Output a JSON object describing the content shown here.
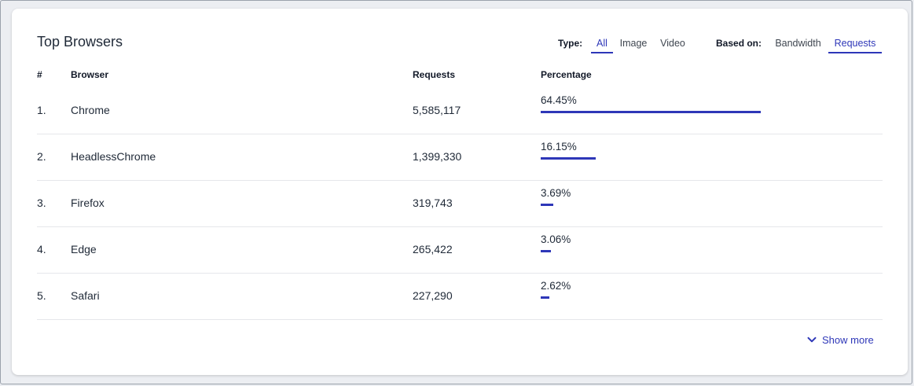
{
  "card": {
    "title": "Top Browsers"
  },
  "filters": {
    "type_label": "Type:",
    "type_options": [
      "All",
      "Image",
      "Video"
    ],
    "type_selected": "All",
    "based_label": "Based on:",
    "based_options": [
      "Bandwidth",
      "Requests"
    ],
    "based_selected": "Requests"
  },
  "table": {
    "headers": {
      "rank": "#",
      "browser": "Browser",
      "requests": "Requests",
      "percentage": "Percentage"
    },
    "rows": [
      {
        "rank": "1.",
        "browser": "Chrome",
        "requests": "5,585,117",
        "percentage": "64.45%",
        "fraction": 0.6445
      },
      {
        "rank": "2.",
        "browser": "HeadlessChrome",
        "requests": "1,399,330",
        "percentage": "16.15%",
        "fraction": 0.1615
      },
      {
        "rank": "3.",
        "browser": "Firefox",
        "requests": "319,743",
        "percentage": "3.69%",
        "fraction": 0.0369
      },
      {
        "rank": "4.",
        "browser": "Edge",
        "requests": "265,422",
        "percentage": "3.06%",
        "fraction": 0.0306
      },
      {
        "rank": "5.",
        "browser": "Safari",
        "requests": "227,290",
        "percentage": "2.62%",
        "fraction": 0.0262
      }
    ]
  },
  "footer": {
    "show_more_label": "Show more",
    "show_more_icon": "chevron-down-icon"
  },
  "colors": {
    "accent": "#2e37b8",
    "divider": "#e5e7eb",
    "background": "#eceef2"
  }
}
